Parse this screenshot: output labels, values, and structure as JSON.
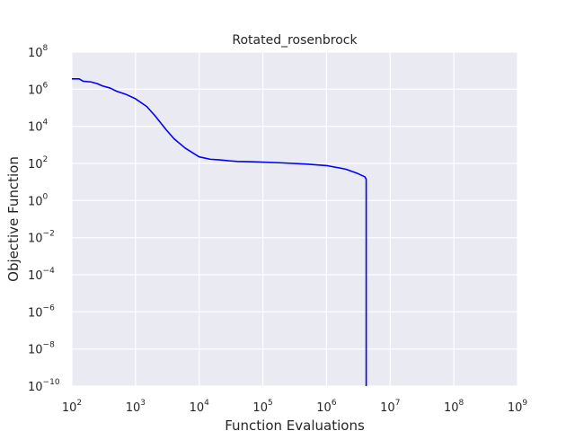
{
  "chart_data": {
    "type": "line",
    "title": "Rotated_rosenbrock",
    "xlabel": "Function Evaluations",
    "ylabel": "Objective Function",
    "xscale": "log",
    "yscale": "log",
    "xlim": [
      100,
      1000000000
    ],
    "ylim": [
      1e-10,
      1000000000
    ],
    "grid": true,
    "x_ticks": [
      {
        "base": "10",
        "exp": "2"
      },
      {
        "base": "10",
        "exp": "3"
      },
      {
        "base": "10",
        "exp": "4"
      },
      {
        "base": "10",
        "exp": "5"
      },
      {
        "base": "10",
        "exp": "6"
      },
      {
        "base": "10",
        "exp": "7"
      },
      {
        "base": "10",
        "exp": "8"
      },
      {
        "base": "10",
        "exp": "9"
      }
    ],
    "y_ticks": [
      {
        "base": "10",
        "exp": "−10"
      },
      {
        "base": "10",
        "exp": "−8"
      },
      {
        "base": "10",
        "exp": "−6"
      },
      {
        "base": "10",
        "exp": "−4"
      },
      {
        "base": "10",
        "exp": "−2"
      },
      {
        "base": "10",
        "exp": "0"
      },
      {
        "base": "10",
        "exp": "2"
      },
      {
        "base": "10",
        "exp": "4"
      },
      {
        "base": "10",
        "exp": "6"
      },
      {
        "base": "10",
        "exp": "8"
      }
    ],
    "series": [
      {
        "color": "#0000ff",
        "x": [
          100,
          130,
          150,
          200,
          250,
          300,
          400,
          500,
          700,
          1000,
          1500,
          2000,
          3000,
          4000,
          6000,
          8000,
          10000,
          15000,
          20000,
          30000,
          40000,
          60000,
          100000,
          200000,
          500000,
          1000000,
          2000000,
          3000000,
          4000000,
          4200000,
          4200000
        ],
        "y": [
          30000000,
          30000000,
          22000000,
          20000000,
          16000000,
          12000000,
          9000000,
          6000000,
          4000000,
          2200000,
          800000,
          250000,
          40000,
          12000,
          3500,
          1800,
          1100,
          800,
          750,
          650,
          600,
          580,
          550,
          500,
          420,
          350,
          220,
          130,
          80,
          60,
          1e-10
        ]
      }
    ]
  }
}
